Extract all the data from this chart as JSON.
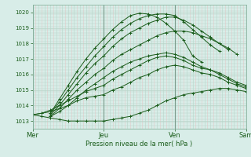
{
  "bg_color": "#d8ede8",
  "plot_bg_color": "#d8ede8",
  "grid_major_color": "#b8d4c8",
  "grid_minor_color": "#e8c8c8",
  "line_color": "#1a5c1a",
  "marker_color": "#1a5c1a",
  "xlabel": "Pression niveau de la mer( hPa )",
  "ylim": [
    1012.5,
    1020.5
  ],
  "yticks": [
    1013,
    1014,
    1015,
    1016,
    1017,
    1018,
    1019,
    1020
  ],
  "xlim": [
    0,
    72
  ],
  "x_day_labels": [
    [
      0,
      "Mer"
    ],
    [
      24,
      "Jeu"
    ],
    [
      48,
      "Ven"
    ],
    [
      72,
      "Sam"
    ]
  ],
  "lines": [
    {
      "x": [
        0,
        3,
        6,
        9,
        12,
        15,
        18,
        21,
        24,
        27,
        30,
        33,
        36,
        39,
        42,
        45,
        48,
        51,
        54,
        57,
        60,
        63,
        66,
        69,
        72
      ],
      "y": [
        1013.4,
        1013.3,
        1013.2,
        1013.1,
        1013.0,
        1013.0,
        1013.0,
        1013.0,
        1013.0,
        1013.1,
        1013.2,
        1013.3,
        1013.5,
        1013.7,
        1014.0,
        1014.3,
        1014.5,
        1014.7,
        1014.8,
        1014.9,
        1015.0,
        1015.1,
        1015.1,
        1015.0,
        1014.9
      ]
    },
    {
      "x": [
        0,
        3,
        6,
        9,
        12,
        15,
        18,
        21,
        24,
        27,
        30,
        33,
        36,
        39,
        42,
        45,
        48,
        51,
        54,
        57,
        60,
        63,
        66,
        69,
        72
      ],
      "y": [
        1013.4,
        1013.5,
        1013.6,
        1013.8,
        1014.0,
        1014.3,
        1014.5,
        1014.6,
        1014.7,
        1015.0,
        1015.2,
        1015.5,
        1015.8,
        1016.0,
        1016.3,
        1016.5,
        1016.6,
        1016.5,
        1016.3,
        1016.1,
        1016.0,
        1015.8,
        1015.5,
        1015.3,
        1015.1
      ]
    },
    {
      "x": [
        0,
        3,
        6,
        9,
        12,
        15,
        18,
        21,
        24,
        27,
        30,
        33,
        36,
        39,
        42,
        45,
        48,
        51,
        54,
        57,
        60,
        63,
        66,
        69,
        72
      ],
      "y": [
        1013.4,
        1013.5,
        1013.7,
        1014.0,
        1014.3,
        1014.6,
        1014.9,
        1015.1,
        1015.3,
        1015.7,
        1016.0,
        1016.3,
        1016.6,
        1016.9,
        1017.1,
        1017.2,
        1017.1,
        1016.9,
        1016.6,
        1016.4,
        1016.3,
        1016.1,
        1015.8,
        1015.5,
        1015.3
      ]
    },
    {
      "x": [
        6,
        9,
        12,
        15,
        18,
        21,
        24,
        27,
        30,
        33,
        36,
        39,
        42,
        45,
        48,
        51,
        54,
        57,
        60,
        63,
        66,
        69,
        72
      ],
      "y": [
        1013.3,
        1013.6,
        1014.0,
        1014.5,
        1015.0,
        1015.4,
        1015.8,
        1016.2,
        1016.5,
        1016.8,
        1017.0,
        1017.2,
        1017.3,
        1017.4,
        1017.3,
        1017.1,
        1016.8,
        1016.5,
        1016.3,
        1016.0,
        1015.7,
        1015.4,
        1015.2
      ]
    },
    {
      "x": [
        6,
        9,
        12,
        15,
        18,
        21,
        24,
        27,
        30,
        33,
        36,
        39,
        42,
        45,
        48,
        51,
        54,
        57,
        60,
        63,
        66,
        69
      ],
      "y": [
        1013.3,
        1013.8,
        1014.4,
        1015.0,
        1015.5,
        1016.0,
        1016.4,
        1016.9,
        1017.3,
        1017.6,
        1017.9,
        1018.2,
        1018.5,
        1018.7,
        1018.8,
        1018.8,
        1018.7,
        1018.5,
        1018.3,
        1018.0,
        1017.7,
        1017.3
      ]
    },
    {
      "x": [
        6,
        9,
        12,
        15,
        18,
        21,
        24,
        27,
        30,
        33,
        36,
        39,
        42,
        45,
        48,
        51,
        54,
        57,
        60,
        63,
        66
      ],
      "y": [
        1013.4,
        1014.0,
        1014.7,
        1015.4,
        1016.1,
        1016.7,
        1017.2,
        1017.8,
        1018.3,
        1018.7,
        1019.0,
        1019.3,
        1019.5,
        1019.7,
        1019.7,
        1019.5,
        1019.2,
        1018.8,
        1018.4,
        1018.0,
        1017.6
      ]
    },
    {
      "x": [
        6,
        9,
        12,
        15,
        18,
        21,
        24,
        27,
        30,
        33,
        36,
        39,
        42,
        45,
        48,
        51,
        54,
        57,
        60,
        63
      ],
      "y": [
        1013.5,
        1014.2,
        1015.0,
        1015.8,
        1016.5,
        1017.2,
        1017.8,
        1018.4,
        1018.9,
        1019.3,
        1019.6,
        1019.8,
        1019.9,
        1019.9,
        1019.8,
        1019.4,
        1018.9,
        1018.4,
        1017.9,
        1017.5
      ]
    },
    {
      "x": [
        6,
        9,
        12,
        15,
        18,
        21,
        24,
        27,
        30,
        33,
        36,
        39,
        42,
        45,
        48,
        51,
        54,
        57
      ],
      "y": [
        1013.5,
        1014.4,
        1015.3,
        1016.2,
        1017.0,
        1017.7,
        1018.3,
        1018.9,
        1019.4,
        1019.8,
        1019.95,
        1019.9,
        1019.7,
        1019.3,
        1018.8,
        1018.2,
        1017.2,
        1016.8
      ]
    }
  ]
}
